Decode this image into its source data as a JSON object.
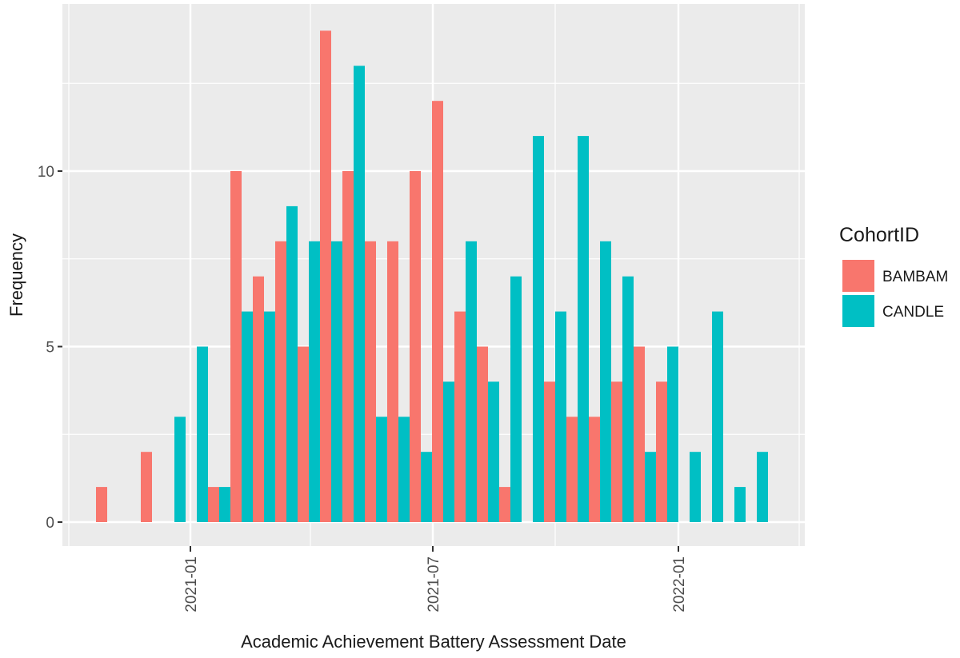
{
  "chart_data": {
    "type": "bar",
    "subtype": "dodged histogram",
    "title": "",
    "xlabel": "Academic Achievement Battery Assessment Date",
    "ylabel": "Frequency",
    "ylim": [
      0,
      14.6
    ],
    "y_ticks": [
      0,
      5,
      10
    ],
    "x_ticks": [
      "2021-01",
      "2021-07",
      "2022-01"
    ],
    "grid": true,
    "legend_position": "right",
    "legend_title": "CohortID",
    "bin_count": 30,
    "series": [
      {
        "name": "BAMBAM",
        "color": "#F8766D",
        "values": [
          1,
          0,
          2,
          0,
          0,
          1,
          10,
          7,
          8,
          5,
          14,
          10,
          8,
          8,
          10,
          12,
          6,
          5,
          1,
          0,
          4,
          3,
          3,
          4,
          5,
          4,
          0,
          0,
          0,
          0
        ]
      },
      {
        "name": "CANDLE",
        "color": "#00BFC4",
        "values": [
          0,
          0,
          0,
          3,
          5,
          1,
          6,
          6,
          9,
          8,
          8,
          13,
          3,
          3,
          2,
          4,
          8,
          4,
          7,
          11,
          6,
          11,
          8,
          7,
          2,
          5,
          2,
          6,
          1,
          2
        ]
      }
    ]
  },
  "axes": {
    "x_title": "Academic Achievement Battery Assessment Date",
    "y_title": "Frequency",
    "y_tick_labels": [
      "0",
      "5",
      "10"
    ],
    "x_tick_labels": [
      "2021-01",
      "2021-07",
      "2022-01"
    ]
  },
  "legend": {
    "title": "CohortID",
    "items": [
      {
        "label": "BAMBAM",
        "color": "#F8766D"
      },
      {
        "label": "CANDLE",
        "color": "#00BFC4"
      }
    ]
  },
  "style": {
    "panel_bg": "#EBEBEB",
    "grid_color": "#FFFFFF"
  }
}
